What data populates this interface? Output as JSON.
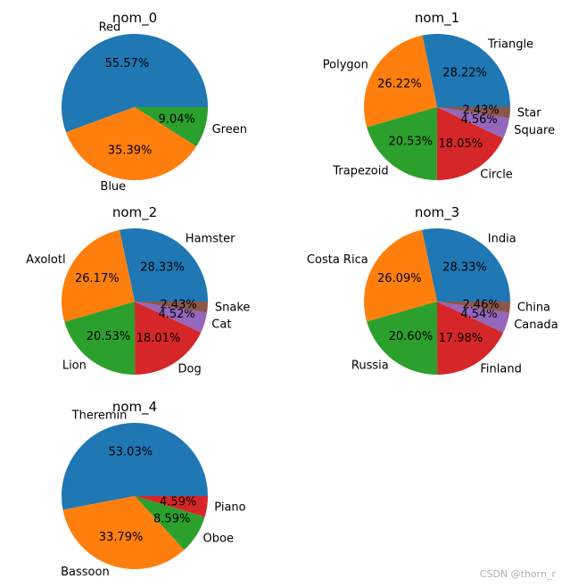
{
  "watermark": "CSDN @thorn_r",
  "palette": [
    "#1f77b4",
    "#ff7f0e",
    "#2ca02c",
    "#d62728",
    "#9467bd",
    "#8c564b"
  ],
  "chart_data": [
    {
      "type": "pie",
      "title": "nom_0",
      "labels": [
        "Red",
        "Blue",
        "Green"
      ],
      "values": [
        55.57,
        35.39,
        9.04
      ],
      "pct_labels": [
        "55.57%",
        "35.39%",
        "9.04%"
      ]
    },
    {
      "type": "pie",
      "title": "nom_1",
      "labels": [
        "Triangle",
        "Polygon",
        "Trapezoid",
        "Circle",
        "Square",
        "Star"
      ],
      "values": [
        28.22,
        26.22,
        20.53,
        18.05,
        4.56,
        2.43
      ],
      "pct_labels": [
        "28.22%",
        "26.22%",
        "20.53%",
        "18.05%",
        "4.56%",
        "2.43%"
      ]
    },
    {
      "type": "pie",
      "title": "nom_2",
      "labels": [
        "Hamster",
        "Axolotl",
        "Lion",
        "Dog",
        "Cat",
        "Snake"
      ],
      "values": [
        28.33,
        26.17,
        20.53,
        18.01,
        4.52,
        2.43
      ],
      "pct_labels": [
        "28.33%",
        "26.17%",
        "20.53%",
        "18.01%",
        "4.52%",
        "2.43%"
      ]
    },
    {
      "type": "pie",
      "title": "nom_3",
      "labels": [
        "India",
        "Costa Rica",
        "Russia",
        "Finland",
        "Canada",
        "China"
      ],
      "values": [
        28.33,
        26.09,
        20.6,
        17.98,
        4.54,
        2.46
      ],
      "pct_labels": [
        "28.33%",
        "26.09%",
        "20.60%",
        "17.98%",
        "4.54%",
        "2.46%"
      ]
    },
    {
      "type": "pie",
      "title": "nom_4",
      "labels": [
        "Theremin",
        "Bassoon",
        "Oboe",
        "Piano"
      ],
      "values": [
        53.03,
        33.79,
        8.59,
        4.59
      ],
      "pct_labels": [
        "53.03%",
        "33.79%",
        "8.59%",
        "4.59%"
      ]
    }
  ]
}
